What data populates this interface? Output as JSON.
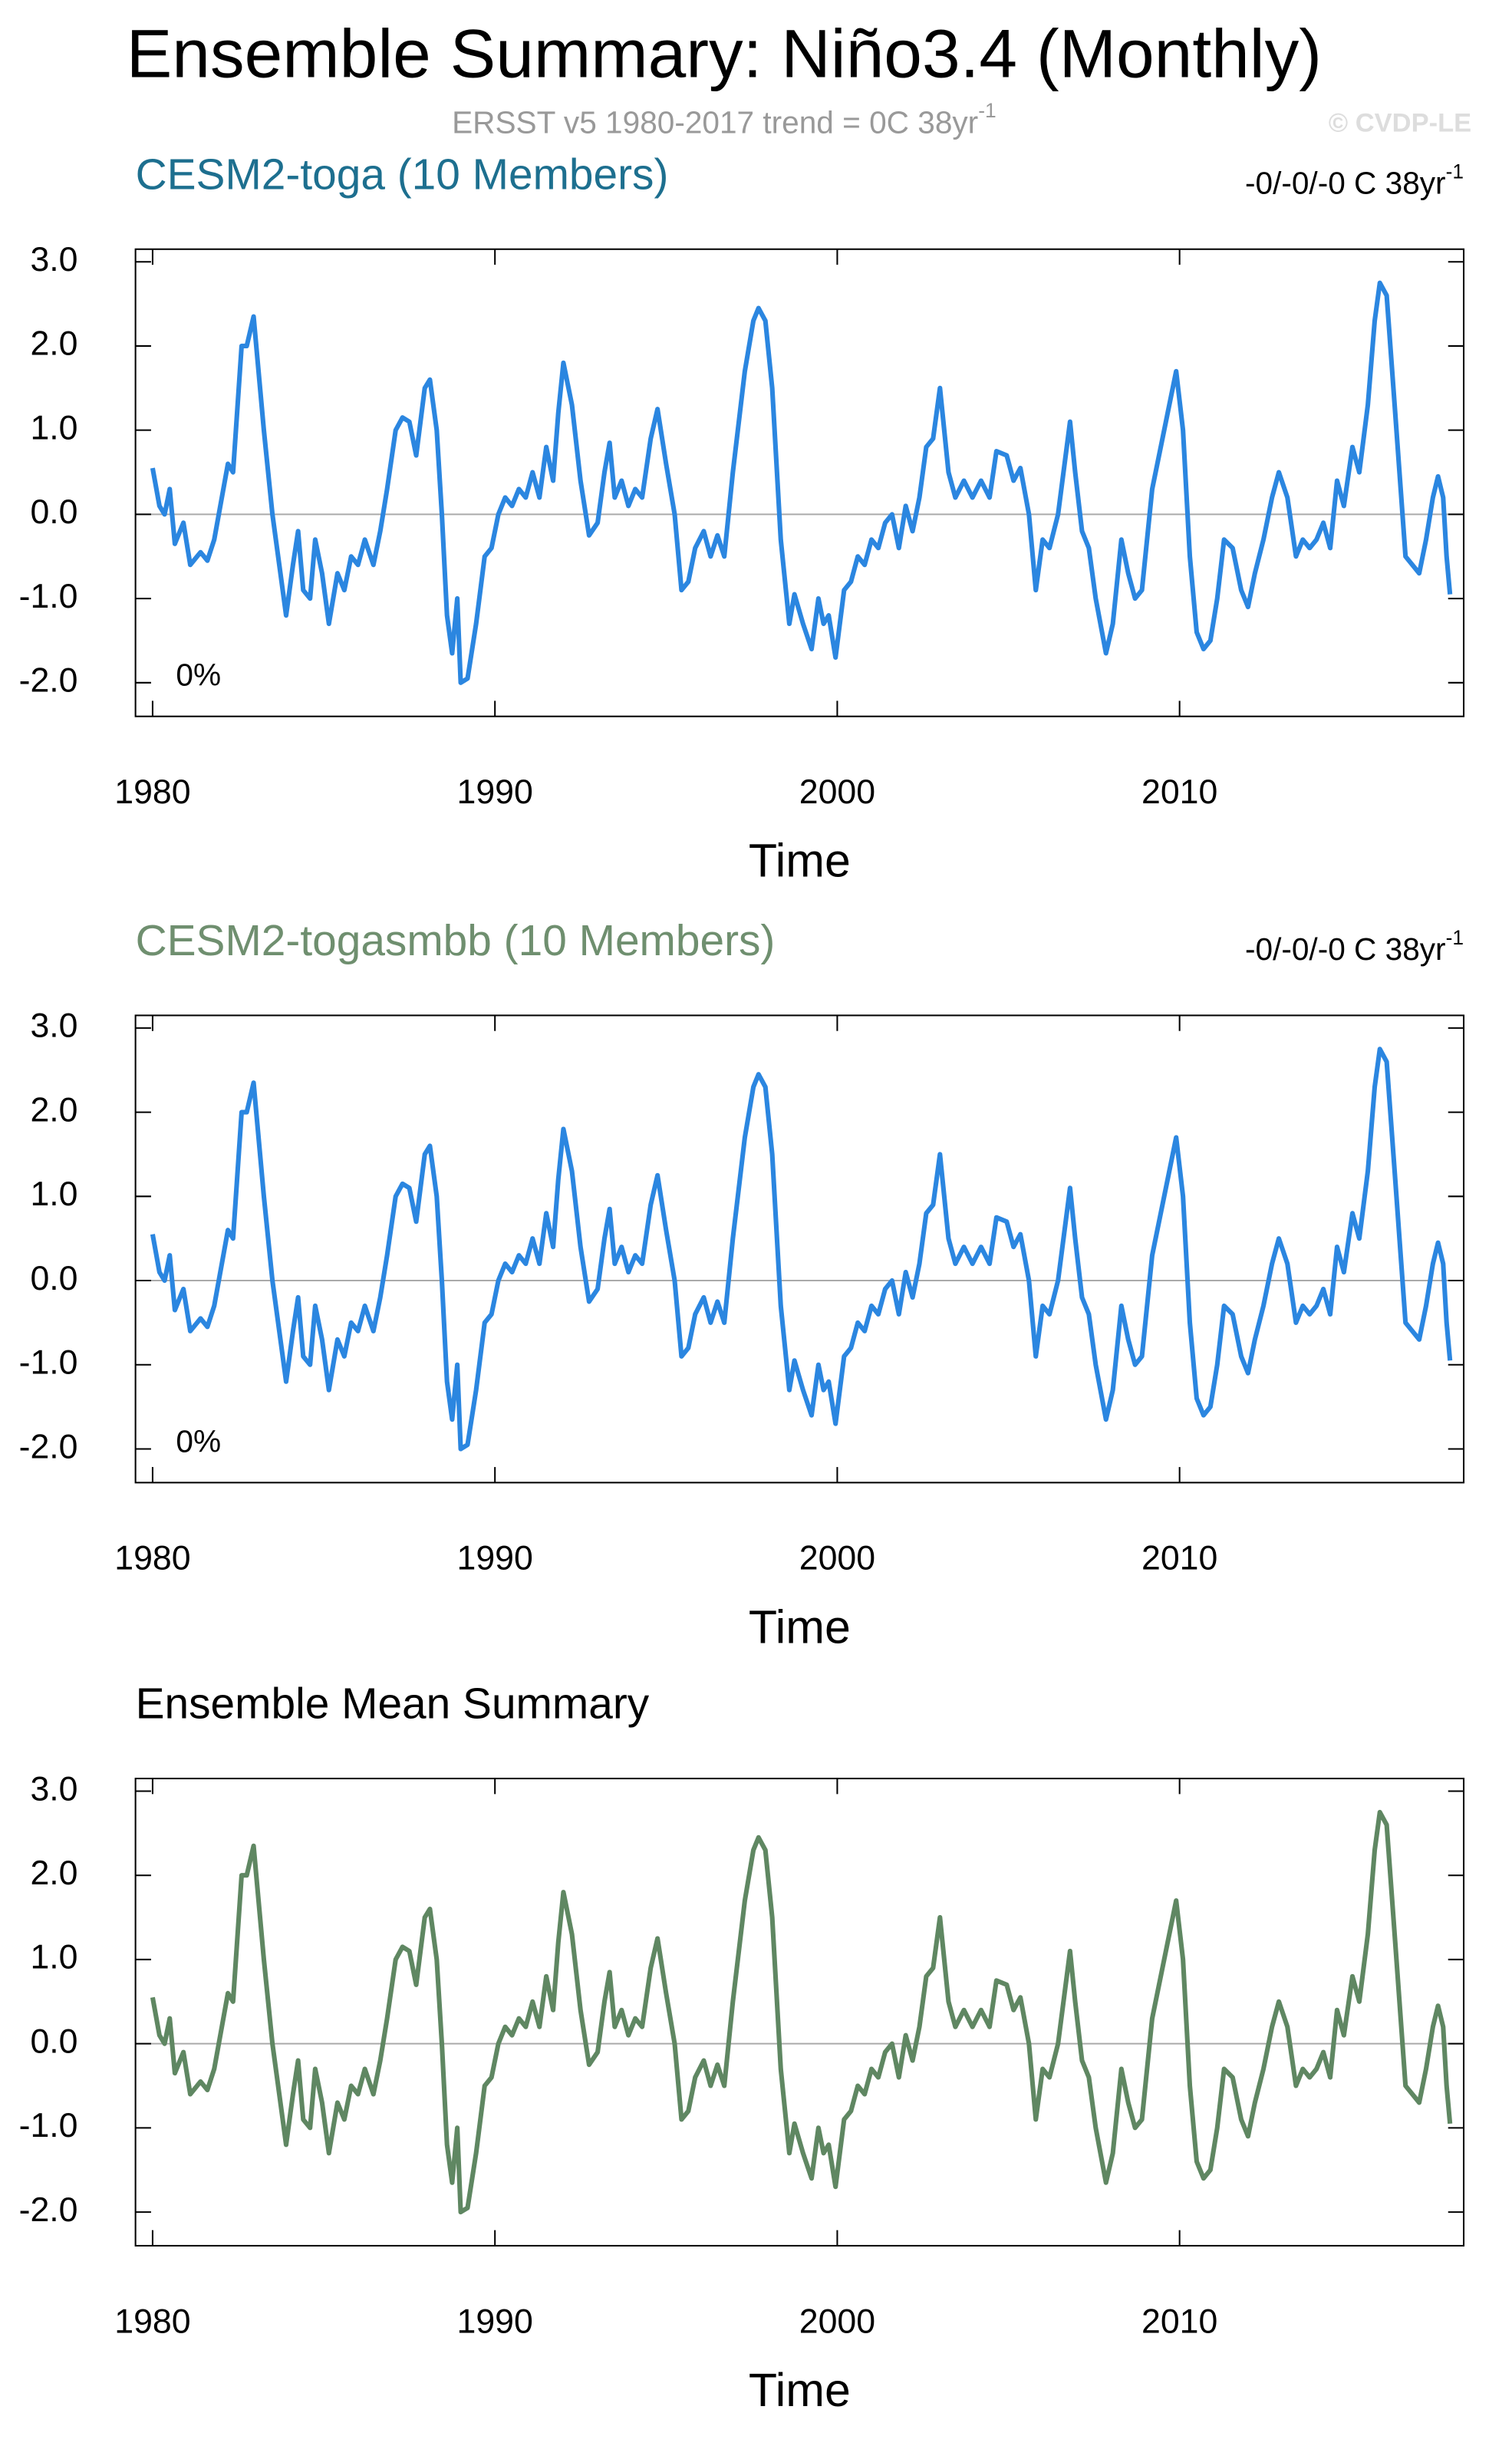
{
  "title": "Ensemble Summary: Niño3.4 (Monthly)",
  "subtitle": "ERSST v5 1980-2017 trend = 0C 38yr",
  "subtitle_sup": "-1",
  "credit": "© CVDP-LE",
  "chart_data": [
    {
      "type": "line",
      "title": "CESM2-toga (10 Members)",
      "title_color": "#1d6f8f",
      "trend_label": "-0/-0/-0 C 38yr",
      "trend_label_sup": "-1",
      "annotation": "0%",
      "xlabel": "Time",
      "color": "#2b86e0",
      "xlim": [
        1979.5,
        2018.3
      ],
      "xticks": [
        1980,
        1990,
        2000,
        2010
      ],
      "ylim": [
        -2.4,
        3.15
      ],
      "yticks": [
        {
          "value": -2,
          "label": "-2.0"
        },
        {
          "value": -1,
          "label": "-1.0"
        },
        {
          "value": 0,
          "label": "0.0"
        },
        {
          "value": 1,
          "label": "1.0"
        },
        {
          "value": 2,
          "label": "2.0"
        },
        {
          "value": 3,
          "label": "3.0"
        }
      ],
      "zero_line": true,
      "x": [
        1980.0,
        1980.2,
        1980.35,
        1980.5,
        1980.65,
        1980.9,
        1981.1,
        1981.4,
        1981.6,
        1981.8,
        1982.0,
        1982.2,
        1982.35,
        1982.6,
        1982.75,
        1982.95,
        1983.25,
        1983.5,
        1983.7,
        1983.9,
        1984.1,
        1984.25,
        1984.4,
        1984.6,
        1984.75,
        1984.95,
        1985.15,
        1985.4,
        1985.6,
        1985.8,
        1986.0,
        1986.2,
        1986.45,
        1986.65,
        1986.85,
        1987.1,
        1987.3,
        1987.5,
        1987.7,
        1987.95,
        1988.1,
        1988.3,
        1988.45,
        1988.6,
        1988.75,
        1988.9,
        1989.0,
        1989.2,
        1989.45,
        1989.7,
        1989.9,
        1990.1,
        1990.3,
        1990.5,
        1990.7,
        1990.9,
        1991.1,
        1991.3,
        1991.5,
        1991.7,
        1991.85,
        1992.0,
        1992.25,
        1992.5,
        1992.75,
        1993.0,
        1993.2,
        1993.35,
        1993.5,
        1993.7,
        1993.9,
        1994.1,
        1994.3,
        1994.55,
        1994.75,
        1995.0,
        1995.25,
        1995.45,
        1995.65,
        1995.85,
        1996.1,
        1996.3,
        1996.5,
        1996.7,
        1996.95,
        1997.3,
        1997.55,
        1997.7,
        1997.9,
        1998.1,
        1998.35,
        1998.6,
        1998.75,
        1999.0,
        1999.25,
        1999.45,
        1999.6,
        1999.75,
        1999.95,
        2000.2,
        2000.4,
        2000.6,
        2000.8,
        2001.0,
        2001.2,
        2001.4,
        2001.6,
        2001.8,
        2002.0,
        2002.2,
        2002.4,
        2002.6,
        2002.8,
        2003.0,
        2003.25,
        2003.45,
        2003.7,
        2003.95,
        2004.2,
        2004.45,
        2004.65,
        2004.95,
        2005.15,
        2005.35,
        2005.6,
        2005.8,
        2006.0,
        2006.2,
        2006.45,
        2006.8,
        2006.95,
        2007.15,
        2007.35,
        2007.55,
        2007.85,
        2008.05,
        2008.3,
        2008.5,
        2008.7,
        2008.9,
        2009.2,
        2009.45,
        2009.9,
        2010.1,
        2010.3,
        2010.5,
        2010.7,
        2010.9,
        2011.1,
        2011.3,
        2011.55,
        2011.8,
        2012.0,
        2012.2,
        2012.45,
        2012.7,
        2012.9,
        2013.15,
        2013.4,
        2013.6,
        2013.8,
        2014.0,
        2014.2,
        2014.4,
        2014.6,
        2014.8,
        2015.05,
        2015.25,
        2015.5,
        2015.7,
        2015.85,
        2016.05,
        2016.3,
        2016.6,
        2016.8,
        2017.0,
        2017.2,
        2017.4,
        2017.55,
        2017.7,
        2017.8,
        2017.9
      ],
      "values": [
        0.55,
        0.1,
        0.0,
        0.3,
        -0.35,
        -0.1,
        -0.6,
        -0.45,
        -0.55,
        -0.3,
        0.15,
        0.6,
        0.5,
        2.0,
        2.0,
        2.35,
        1.0,
        0.0,
        -0.6,
        -1.2,
        -0.6,
        -0.2,
        -0.9,
        -1.0,
        -0.3,
        -0.7,
        -1.3,
        -0.7,
        -0.9,
        -0.5,
        -0.6,
        -0.3,
        -0.6,
        -0.2,
        0.3,
        1.0,
        1.15,
        1.1,
        0.7,
        1.5,
        1.6,
        1.0,
        0.0,
        -1.2,
        -1.65,
        -1.0,
        -2.0,
        -1.95,
        -1.3,
        -0.5,
        -0.4,
        0.0,
        0.2,
        0.1,
        0.3,
        0.2,
        0.5,
        0.2,
        0.8,
        0.4,
        1.2,
        1.8,
        1.3,
        0.4,
        -0.25,
        -0.1,
        0.5,
        0.85,
        0.2,
        0.4,
        0.1,
        0.3,
        0.2,
        0.9,
        1.25,
        0.6,
        0.0,
        -0.9,
        -0.8,
        -0.4,
        -0.2,
        -0.5,
        -0.25,
        -0.5,
        0.5,
        1.7,
        2.3,
        2.45,
        2.3,
        1.5,
        -0.3,
        -1.3,
        -0.95,
        -1.3,
        -1.6,
        -1.0,
        -1.3,
        -1.2,
        -1.7,
        -0.9,
        -0.8,
        -0.5,
        -0.6,
        -0.3,
        -0.4,
        -0.1,
        0.0,
        -0.4,
        0.1,
        -0.2,
        0.2,
        0.8,
        0.9,
        1.5,
        0.5,
        0.2,
        0.4,
        0.2,
        0.4,
        0.2,
        0.75,
        0.7,
        0.4,
        0.55,
        0.0,
        -0.9,
        -0.3,
        -0.4,
        0.0,
        1.1,
        0.5,
        -0.2,
        -0.4,
        -1.0,
        -1.65,
        -1.3,
        -0.3,
        -0.7,
        -1.0,
        -0.9,
        0.3,
        0.8,
        1.7,
        1.0,
        -0.5,
        -1.4,
        -1.6,
        -1.5,
        -1.0,
        -0.3,
        -0.4,
        -0.9,
        -1.1,
        -0.7,
        -0.3,
        0.2,
        0.5,
        0.2,
        -0.5,
        -0.3,
        -0.4,
        -0.3,
        -0.1,
        -0.4,
        0.4,
        0.1,
        0.8,
        0.5,
        1.3,
        2.3,
        2.75,
        2.6,
        1.2,
        -0.5,
        -0.6,
        -0.7,
        -0.3,
        0.2,
        0.45,
        0.2,
        -0.5,
        -0.95
      ]
    },
    {
      "type": "line",
      "title": "CESM2-togasmbb (10 Members)",
      "title_color": "#6f8f6f",
      "trend_label": "-0/-0/-0 C 38yr",
      "trend_label_sup": "-1",
      "annotation": "0%",
      "xlabel": "Time",
      "color": "#2b86e0",
      "xlim": [
        1979.5,
        2018.3
      ],
      "xticks": [
        1980,
        1990,
        2000,
        2010
      ],
      "ylim": [
        -2.4,
        3.15
      ],
      "yticks": [
        {
          "value": -2,
          "label": "-2.0"
        },
        {
          "value": -1,
          "label": "-1.0"
        },
        {
          "value": 0,
          "label": "0.0"
        },
        {
          "value": 1,
          "label": "1.0"
        },
        {
          "value": 2,
          "label": "2.0"
        },
        {
          "value": 3,
          "label": "3.0"
        }
      ],
      "zero_line": true,
      "x": [
        1980.0,
        1980.2,
        1980.35,
        1980.5,
        1980.65,
        1980.9,
        1981.1,
        1981.4,
        1981.6,
        1981.8,
        1982.0,
        1982.2,
        1982.35,
        1982.6,
        1982.75,
        1982.95,
        1983.25,
        1983.5,
        1983.7,
        1983.9,
        1984.1,
        1984.25,
        1984.4,
        1984.6,
        1984.75,
        1984.95,
        1985.15,
        1985.4,
        1985.6,
        1985.8,
        1986.0,
        1986.2,
        1986.45,
        1986.65,
        1986.85,
        1987.1,
        1987.3,
        1987.5,
        1987.7,
        1987.95,
        1988.1,
        1988.3,
        1988.45,
        1988.6,
        1988.75,
        1988.9,
        1989.0,
        1989.2,
        1989.45,
        1989.7,
        1989.9,
        1990.1,
        1990.3,
        1990.5,
        1990.7,
        1990.9,
        1991.1,
        1991.3,
        1991.5,
        1991.7,
        1991.85,
        1992.0,
        1992.25,
        1992.5,
        1992.75,
        1993.0,
        1993.2,
        1993.35,
        1993.5,
        1993.7,
        1993.9,
        1994.1,
        1994.3,
        1994.55,
        1994.75,
        1995.0,
        1995.25,
        1995.45,
        1995.65,
        1995.85,
        1996.1,
        1996.3,
        1996.5,
        1996.7,
        1996.95,
        1997.3,
        1997.55,
        1997.7,
        1997.9,
        1998.1,
        1998.35,
        1998.6,
        1998.75,
        1999.0,
        1999.25,
        1999.45,
        1999.6,
        1999.75,
        1999.95,
        2000.2,
        2000.4,
        2000.6,
        2000.8,
        2001.0,
        2001.2,
        2001.4,
        2001.6,
        2001.8,
        2002.0,
        2002.2,
        2002.4,
        2002.6,
        2002.8,
        2003.0,
        2003.25,
        2003.45,
        2003.7,
        2003.95,
        2004.2,
        2004.45,
        2004.65,
        2004.95,
        2005.15,
        2005.35,
        2005.6,
        2005.8,
        2006.0,
        2006.2,
        2006.45,
        2006.8,
        2006.95,
        2007.15,
        2007.35,
        2007.55,
        2007.85,
        2008.05,
        2008.3,
        2008.5,
        2008.7,
        2008.9,
        2009.2,
        2009.45,
        2009.9,
        2010.1,
        2010.3,
        2010.5,
        2010.7,
        2010.9,
        2011.1,
        2011.3,
        2011.55,
        2011.8,
        2012.0,
        2012.2,
        2012.45,
        2012.7,
        2012.9,
        2013.15,
        2013.4,
        2013.6,
        2013.8,
        2014.0,
        2014.2,
        2014.4,
        2014.6,
        2014.8,
        2015.05,
        2015.25,
        2015.5,
        2015.7,
        2015.85,
        2016.05,
        2016.3,
        2016.6,
        2016.8,
        2017.0,
        2017.2,
        2017.4,
        2017.55,
        2017.7,
        2017.8,
        2017.9
      ],
      "values": [
        0.55,
        0.1,
        0.0,
        0.3,
        -0.35,
        -0.1,
        -0.6,
        -0.45,
        -0.55,
        -0.3,
        0.15,
        0.6,
        0.5,
        2.0,
        2.0,
        2.35,
        1.0,
        0.0,
        -0.6,
        -1.2,
        -0.6,
        -0.2,
        -0.9,
        -1.0,
        -0.3,
        -0.7,
        -1.3,
        -0.7,
        -0.9,
        -0.5,
        -0.6,
        -0.3,
        -0.6,
        -0.2,
        0.3,
        1.0,
        1.15,
        1.1,
        0.7,
        1.5,
        1.6,
        1.0,
        0.0,
        -1.2,
        -1.65,
        -1.0,
        -2.0,
        -1.95,
        -1.3,
        -0.5,
        -0.4,
        0.0,
        0.2,
        0.1,
        0.3,
        0.2,
        0.5,
        0.2,
        0.8,
        0.4,
        1.2,
        1.8,
        1.3,
        0.4,
        -0.25,
        -0.1,
        0.5,
        0.85,
        0.2,
        0.4,
        0.1,
        0.3,
        0.2,
        0.9,
        1.25,
        0.6,
        0.0,
        -0.9,
        -0.8,
        -0.4,
        -0.2,
        -0.5,
        -0.25,
        -0.5,
        0.5,
        1.7,
        2.3,
        2.45,
        2.3,
        1.5,
        -0.3,
        -1.3,
        -0.95,
        -1.3,
        -1.6,
        -1.0,
        -1.3,
        -1.2,
        -1.7,
        -0.9,
        -0.8,
        -0.5,
        -0.6,
        -0.3,
        -0.4,
        -0.1,
        0.0,
        -0.4,
        0.1,
        -0.2,
        0.2,
        0.8,
        0.9,
        1.5,
        0.5,
        0.2,
        0.4,
        0.2,
        0.4,
        0.2,
        0.75,
        0.7,
        0.4,
        0.55,
        0.0,
        -0.9,
        -0.3,
        -0.4,
        0.0,
        1.1,
        0.5,
        -0.2,
        -0.4,
        -1.0,
        -1.65,
        -1.3,
        -0.3,
        -0.7,
        -1.0,
        -0.9,
        0.3,
        0.8,
        1.7,
        1.0,
        -0.5,
        -1.4,
        -1.6,
        -1.5,
        -1.0,
        -0.3,
        -0.4,
        -0.9,
        -1.1,
        -0.7,
        -0.3,
        0.2,
        0.5,
        0.2,
        -0.5,
        -0.3,
        -0.4,
        -0.3,
        -0.1,
        -0.4,
        0.4,
        0.1,
        0.8,
        0.5,
        1.3,
        2.3,
        2.75,
        2.6,
        1.2,
        -0.5,
        -0.6,
        -0.7,
        -0.3,
        0.2,
        0.45,
        0.2,
        -0.5,
        -0.95
      ]
    },
    {
      "type": "line",
      "title": "Ensemble Mean Summary",
      "title_color": "#000000",
      "xlabel": "Time",
      "color": "#5f8762",
      "xlim": [
        1979.5,
        2018.3
      ],
      "xticks": [
        1980,
        1990,
        2000,
        2010
      ],
      "ylim": [
        -2.4,
        3.15
      ],
      "yticks": [
        {
          "value": -2,
          "label": "-2.0"
        },
        {
          "value": -1,
          "label": "-1.0"
        },
        {
          "value": 0,
          "label": "0.0"
        },
        {
          "value": 1,
          "label": "1.0"
        },
        {
          "value": 2,
          "label": "2.0"
        },
        {
          "value": 3,
          "label": "3.0"
        }
      ],
      "zero_line": true,
      "x": [
        1980.0,
        1980.2,
        1980.35,
        1980.5,
        1980.65,
        1980.9,
        1981.1,
        1981.4,
        1981.6,
        1981.8,
        1982.0,
        1982.2,
        1982.35,
        1982.6,
        1982.75,
        1982.95,
        1983.25,
        1983.5,
        1983.7,
        1983.9,
        1984.1,
        1984.25,
        1984.4,
        1984.6,
        1984.75,
        1984.95,
        1985.15,
        1985.4,
        1985.6,
        1985.8,
        1986.0,
        1986.2,
        1986.45,
        1986.65,
        1986.85,
        1987.1,
        1987.3,
        1987.5,
        1987.7,
        1987.95,
        1988.1,
        1988.3,
        1988.45,
        1988.6,
        1988.75,
        1988.9,
        1989.0,
        1989.2,
        1989.45,
        1989.7,
        1989.9,
        1990.1,
        1990.3,
        1990.5,
        1990.7,
        1990.9,
        1991.1,
        1991.3,
        1991.5,
        1991.7,
        1991.85,
        1992.0,
        1992.25,
        1992.5,
        1992.75,
        1993.0,
        1993.2,
        1993.35,
        1993.5,
        1993.7,
        1993.9,
        1994.1,
        1994.3,
        1994.55,
        1994.75,
        1995.0,
        1995.25,
        1995.45,
        1995.65,
        1995.85,
        1996.1,
        1996.3,
        1996.5,
        1996.7,
        1996.95,
        1997.3,
        1997.55,
        1997.7,
        1997.9,
        1998.1,
        1998.35,
        1998.6,
        1998.75,
        1999.0,
        1999.25,
        1999.45,
        1999.6,
        1999.75,
        1999.95,
        2000.2,
        2000.4,
        2000.6,
        2000.8,
        2001.0,
        2001.2,
        2001.4,
        2001.6,
        2001.8,
        2002.0,
        2002.2,
        2002.4,
        2002.6,
        2002.8,
        2003.0,
        2003.25,
        2003.45,
        2003.7,
        2003.95,
        2004.2,
        2004.45,
        2004.65,
        2004.95,
        2005.15,
        2005.35,
        2005.6,
        2005.8,
        2006.0,
        2006.2,
        2006.45,
        2006.8,
        2006.95,
        2007.15,
        2007.35,
        2007.55,
        2007.85,
        2008.05,
        2008.3,
        2008.5,
        2008.7,
        2008.9,
        2009.2,
        2009.45,
        2009.9,
        2010.1,
        2010.3,
        2010.5,
        2010.7,
        2010.9,
        2011.1,
        2011.3,
        2011.55,
        2011.8,
        2012.0,
        2012.2,
        2012.45,
        2012.7,
        2012.9,
        2013.15,
        2013.4,
        2013.6,
        2013.8,
        2014.0,
        2014.2,
        2014.4,
        2014.6,
        2014.8,
        2015.05,
        2015.25,
        2015.5,
        2015.7,
        2015.85,
        2016.05,
        2016.3,
        2016.6,
        2016.8,
        2017.0,
        2017.2,
        2017.4,
        2017.55,
        2017.7,
        2017.8,
        2017.9
      ],
      "values": [
        0.55,
        0.1,
        0.0,
        0.3,
        -0.35,
        -0.1,
        -0.6,
        -0.45,
        -0.55,
        -0.3,
        0.15,
        0.6,
        0.5,
        2.0,
        2.0,
        2.35,
        1.0,
        0.0,
        -0.6,
        -1.2,
        -0.6,
        -0.2,
        -0.9,
        -1.0,
        -0.3,
        -0.7,
        -1.3,
        -0.7,
        -0.9,
        -0.5,
        -0.6,
        -0.3,
        -0.6,
        -0.2,
        0.3,
        1.0,
        1.15,
        1.1,
        0.7,
        1.5,
        1.6,
        1.0,
        0.0,
        -1.2,
        -1.65,
        -1.0,
        -2.0,
        -1.95,
        -1.3,
        -0.5,
        -0.4,
        0.0,
        0.2,
        0.1,
        0.3,
        0.2,
        0.5,
        0.2,
        0.8,
        0.4,
        1.2,
        1.8,
        1.3,
        0.4,
        -0.25,
        -0.1,
        0.5,
        0.85,
        0.2,
        0.4,
        0.1,
        0.3,
        0.2,
        0.9,
        1.25,
        0.6,
        0.0,
        -0.9,
        -0.8,
        -0.4,
        -0.2,
        -0.5,
        -0.25,
        -0.5,
        0.5,
        1.7,
        2.3,
        2.45,
        2.3,
        1.5,
        -0.3,
        -1.3,
        -0.95,
        -1.3,
        -1.6,
        -1.0,
        -1.3,
        -1.2,
        -1.7,
        -0.9,
        -0.8,
        -0.5,
        -0.6,
        -0.3,
        -0.4,
        -0.1,
        0.0,
        -0.4,
        0.1,
        -0.2,
        0.2,
        0.8,
        0.9,
        1.5,
        0.5,
        0.2,
        0.4,
        0.2,
        0.4,
        0.2,
        0.75,
        0.7,
        0.4,
        0.55,
        0.0,
        -0.9,
        -0.3,
        -0.4,
        0.0,
        1.1,
        0.5,
        -0.2,
        -0.4,
        -1.0,
        -1.65,
        -1.3,
        -0.3,
        -0.7,
        -1.0,
        -0.9,
        0.3,
        0.8,
        1.7,
        1.0,
        -0.5,
        -1.4,
        -1.6,
        -1.5,
        -1.0,
        -0.3,
        -0.4,
        -0.9,
        -1.1,
        -0.7,
        -0.3,
        0.2,
        0.5,
        0.2,
        -0.5,
        -0.3,
        -0.4,
        -0.3,
        -0.1,
        -0.4,
        0.4,
        0.1,
        0.8,
        0.5,
        1.3,
        2.3,
        2.75,
        2.6,
        1.2,
        -0.5,
        -0.6,
        -0.7,
        -0.3,
        0.2,
        0.45,
        0.2,
        -0.5,
        -0.95
      ]
    }
  ]
}
